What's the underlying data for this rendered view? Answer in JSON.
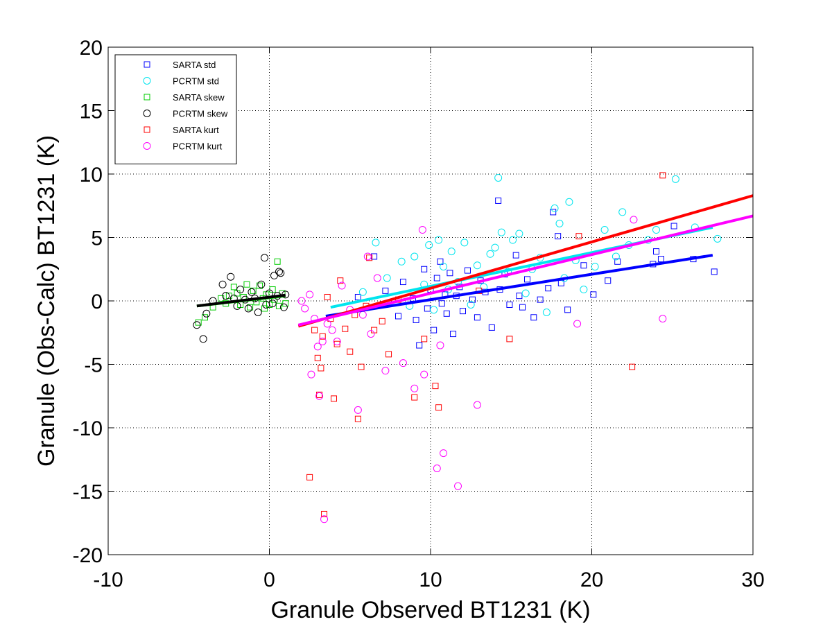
{
  "chart_data": {
    "type": "scatter",
    "xlabel": "Granule Observed BT1231 (K)",
    "ylabel": "Granule (Obs-Calc) BT1231 (K)",
    "xlim": [
      -10,
      30
    ],
    "ylim": [
      -20,
      20
    ],
    "xticks": [
      -10,
      0,
      10,
      20,
      30
    ],
    "yticks": [
      -20,
      -15,
      -10,
      -5,
      0,
      5,
      10,
      15,
      20
    ],
    "grid": "dotted",
    "legend_position": "top-left",
    "series": [
      {
        "name": "SARTA std",
        "marker": "square",
        "color": "#0000ff",
        "points": [
          [
            5.5,
            0.3
          ],
          [
            6.5,
            3.5
          ],
          [
            7.2,
            0.8
          ],
          [
            8.0,
            -1.2
          ],
          [
            8.3,
            1.5
          ],
          [
            8.9,
            0.2
          ],
          [
            9.1,
            -1.5
          ],
          [
            9.3,
            -3.5
          ],
          [
            9.6,
            2.5
          ],
          [
            9.8,
            -0.6
          ],
          [
            10.0,
            0.9
          ],
          [
            10.2,
            -2.3
          ],
          [
            10.4,
            1.8
          ],
          [
            10.6,
            3.1
          ],
          [
            10.7,
            -0.2
          ],
          [
            10.9,
            0.5
          ],
          [
            11.0,
            -1.0
          ],
          [
            11.2,
            2.2
          ],
          [
            11.4,
            -2.6
          ],
          [
            11.6,
            0.4
          ],
          [
            11.8,
            1.1
          ],
          [
            12.0,
            -0.8
          ],
          [
            12.3,
            2.4
          ],
          [
            12.6,
            0.1
          ],
          [
            12.9,
            -1.3
          ],
          [
            13.1,
            1.6
          ],
          [
            13.4,
            0.7
          ],
          [
            13.8,
            -2.1
          ],
          [
            14.2,
            7.9
          ],
          [
            14.3,
            0.9
          ],
          [
            14.6,
            2.1
          ],
          [
            14.9,
            -0.3
          ],
          [
            15.3,
            3.6
          ],
          [
            15.5,
            0.4
          ],
          [
            15.7,
            -0.5
          ],
          [
            16.0,
            1.7
          ],
          [
            16.4,
            -1.3
          ],
          [
            16.8,
            0.1
          ],
          [
            17.3,
            1.0
          ],
          [
            17.6,
            7.0
          ],
          [
            17.9,
            5.1
          ],
          [
            18.1,
            1.4
          ],
          [
            18.5,
            -0.7
          ],
          [
            19.5,
            2.8
          ],
          [
            20.1,
            0.5
          ],
          [
            21.0,
            1.6
          ],
          [
            21.6,
            3.1
          ],
          [
            23.8,
            2.9
          ],
          [
            24.0,
            3.9
          ],
          [
            24.3,
            3.3
          ],
          [
            25.1,
            5.9
          ],
          [
            26.3,
            3.3
          ],
          [
            27.6,
            2.3
          ]
        ]
      },
      {
        "name": "PCRTM std",
        "marker": "circle",
        "color": "#00e5ee",
        "points": [
          [
            5.8,
            0.7
          ],
          [
            6.6,
            4.6
          ],
          [
            7.3,
            1.8
          ],
          [
            8.2,
            3.1
          ],
          [
            8.7,
            -0.4
          ],
          [
            9.0,
            3.5
          ],
          [
            9.6,
            1.3
          ],
          [
            9.9,
            4.4
          ],
          [
            10.2,
            -0.7
          ],
          [
            10.5,
            4.8
          ],
          [
            10.8,
            2.7
          ],
          [
            11.1,
            0.9
          ],
          [
            11.3,
            3.9
          ],
          [
            11.7,
            1.5
          ],
          [
            12.1,
            4.6
          ],
          [
            12.5,
            -0.3
          ],
          [
            12.9,
            2.8
          ],
          [
            13.3,
            1.1
          ],
          [
            13.7,
            3.7
          ],
          [
            14.0,
            4.2
          ],
          [
            14.2,
            9.7
          ],
          [
            14.4,
            5.4
          ],
          [
            14.8,
            2.3
          ],
          [
            15.1,
            4.8
          ],
          [
            15.5,
            5.3
          ],
          [
            15.9,
            0.6
          ],
          [
            16.3,
            2.5
          ],
          [
            16.8,
            3.4
          ],
          [
            17.2,
            -0.9
          ],
          [
            17.7,
            7.3
          ],
          [
            18.0,
            6.1
          ],
          [
            18.3,
            1.8
          ],
          [
            18.6,
            7.8
          ],
          [
            19.0,
            3.2
          ],
          [
            19.5,
            0.9
          ],
          [
            20.2,
            2.7
          ],
          [
            20.8,
            5.6
          ],
          [
            21.5,
            3.5
          ],
          [
            21.9,
            7.0
          ],
          [
            22.3,
            4.4
          ],
          [
            23.5,
            4.8
          ],
          [
            24.0,
            5.6
          ],
          [
            25.2,
            9.6
          ],
          [
            26.4,
            5.8
          ],
          [
            27.8,
            4.9
          ]
        ]
      },
      {
        "name": "SARTA skew",
        "marker": "square",
        "color": "#00cc00",
        "points": [
          [
            -4.4,
            -1.7
          ],
          [
            -4.0,
            -1.3
          ],
          [
            -3.5,
            -0.5
          ],
          [
            -3.0,
            0.2
          ],
          [
            -2.7,
            -0.2
          ],
          [
            -2.5,
            0.4
          ],
          [
            -2.2,
            1.1
          ],
          [
            -2.0,
            0.6
          ],
          [
            -1.8,
            -0.3
          ],
          [
            -1.6,
            0.3
          ],
          [
            -1.4,
            1.3
          ],
          [
            -1.2,
            -0.5
          ],
          [
            -1.0,
            0.8
          ],
          [
            -0.8,
            -0.1
          ],
          [
            -0.6,
            1.2
          ],
          [
            -0.4,
            0.2
          ],
          [
            -0.3,
            -0.6
          ],
          [
            -0.2,
            0.5
          ],
          [
            0.0,
            -0.3
          ],
          [
            0.2,
            0.9
          ],
          [
            0.3,
            0.1
          ],
          [
            0.5,
            3.1
          ],
          [
            0.6,
            -0.4
          ],
          [
            0.8,
            0.6
          ],
          [
            1.0,
            -0.2
          ]
        ]
      },
      {
        "name": "PCRTM skew",
        "marker": "circle",
        "color": "#000000",
        "points": [
          [
            -4.5,
            -1.9
          ],
          [
            -4.1,
            -3.0
          ],
          [
            -3.9,
            -1.0
          ],
          [
            -3.5,
            0.0
          ],
          [
            -2.9,
            1.3
          ],
          [
            -2.7,
            0.4
          ],
          [
            -2.4,
            1.9
          ],
          [
            -2.2,
            0.2
          ],
          [
            -2.0,
            -0.4
          ],
          [
            -1.8,
            0.9
          ],
          [
            -1.5,
            0.1
          ],
          [
            -1.3,
            -0.6
          ],
          [
            -1.1,
            0.7
          ],
          [
            -0.9,
            0.2
          ],
          [
            -0.7,
            -0.9
          ],
          [
            -0.5,
            1.3
          ],
          [
            -0.3,
            3.4
          ],
          [
            -0.2,
            -0.3
          ],
          [
            0.0,
            0.6
          ],
          [
            0.2,
            -0.2
          ],
          [
            0.3,
            2.0
          ],
          [
            0.5,
            0.4
          ],
          [
            0.6,
            2.3
          ],
          [
            0.7,
            2.2
          ],
          [
            0.9,
            -0.5
          ],
          [
            1.0,
            0.5
          ]
        ]
      },
      {
        "name": "SARTA kurt",
        "marker": "square",
        "color": "#ff0000",
        "points": [
          [
            2.5,
            -13.9
          ],
          [
            2.8,
            -2.3
          ],
          [
            3.0,
            -4.5
          ],
          [
            3.1,
            -7.4
          ],
          [
            3.2,
            -5.3
          ],
          [
            3.3,
            -2.8
          ],
          [
            3.4,
            -16.8
          ],
          [
            3.6,
            0.3
          ],
          [
            3.8,
            -1.4
          ],
          [
            4.0,
            -7.7
          ],
          [
            4.2,
            -3.4
          ],
          [
            4.4,
            1.6
          ],
          [
            4.7,
            -2.2
          ],
          [
            5.0,
            -4.0
          ],
          [
            5.3,
            -1.1
          ],
          [
            5.5,
            -9.3
          ],
          [
            5.7,
            -5.2
          ],
          [
            6.0,
            -0.4
          ],
          [
            6.2,
            3.4
          ],
          [
            6.5,
            -2.3
          ],
          [
            7.0,
            -1.6
          ],
          [
            7.4,
            -4.2
          ],
          [
            8.0,
            0.1
          ],
          [
            9.0,
            -7.6
          ],
          [
            9.6,
            -3.0
          ],
          [
            10.3,
            -6.7
          ],
          [
            10.5,
            -8.4
          ],
          [
            13.0,
            0.8
          ],
          [
            14.9,
            -3.0
          ],
          [
            19.2,
            5.1
          ],
          [
            22.5,
            -5.2
          ],
          [
            24.4,
            9.9
          ]
        ]
      },
      {
        "name": "PCRTM kurt",
        "marker": "circle",
        "color": "#ff00ff",
        "points": [
          [
            2.0,
            0.0
          ],
          [
            2.2,
            -0.6
          ],
          [
            2.5,
            0.5
          ],
          [
            2.6,
            -5.8
          ],
          [
            2.8,
            -1.4
          ],
          [
            3.0,
            -3.6
          ],
          [
            3.1,
            -7.5
          ],
          [
            3.3,
            -3.2
          ],
          [
            3.4,
            -17.2
          ],
          [
            3.6,
            -1.8
          ],
          [
            3.9,
            -2.3
          ],
          [
            4.2,
            -3.2
          ],
          [
            4.5,
            1.2
          ],
          [
            5.0,
            -0.7
          ],
          [
            5.5,
            -8.6
          ],
          [
            5.8,
            -1.1
          ],
          [
            6.1,
            3.5
          ],
          [
            6.3,
            -2.6
          ],
          [
            6.7,
            1.8
          ],
          [
            7.2,
            -5.5
          ],
          [
            8.3,
            -4.9
          ],
          [
            9.0,
            -6.9
          ],
          [
            9.5,
            5.6
          ],
          [
            9.6,
            -5.8
          ],
          [
            10.4,
            -13.2
          ],
          [
            10.6,
            -3.5
          ],
          [
            10.8,
            -12.0
          ],
          [
            11.7,
            -14.6
          ],
          [
            12.9,
            -8.2
          ],
          [
            19.1,
            -1.8
          ],
          [
            22.6,
            6.4
          ],
          [
            24.4,
            -1.4
          ]
        ]
      }
    ],
    "fit_lines": [
      {
        "series": "SARTA std",
        "color": "#0000ff",
        "x": [
          3.5,
          27.5
        ],
        "y": [
          -1.2,
          3.6
        ]
      },
      {
        "series": "PCRTM std",
        "color": "#00e5ee",
        "x": [
          3.8,
          27.5
        ],
        "y": [
          -0.5,
          5.8
        ]
      },
      {
        "series": "SARTA skew",
        "color": "#00cc00",
        "x": [
          -4.5,
          1.0
        ],
        "y": [
          -0.4,
          0.4
        ]
      },
      {
        "series": "PCRTM skew",
        "color": "#000000",
        "x": [
          -4.5,
          1.0
        ],
        "y": [
          -0.4,
          0.45
        ]
      },
      {
        "series": "SARTA kurt",
        "color": "#ff0000",
        "x": [
          1.8,
          30.0
        ],
        "y": [
          -2.0,
          8.3
        ]
      },
      {
        "series": "PCRTM kurt",
        "color": "#ff00ff",
        "x": [
          1.8,
          30.0
        ],
        "y": [
          -1.9,
          6.7
        ]
      }
    ]
  }
}
